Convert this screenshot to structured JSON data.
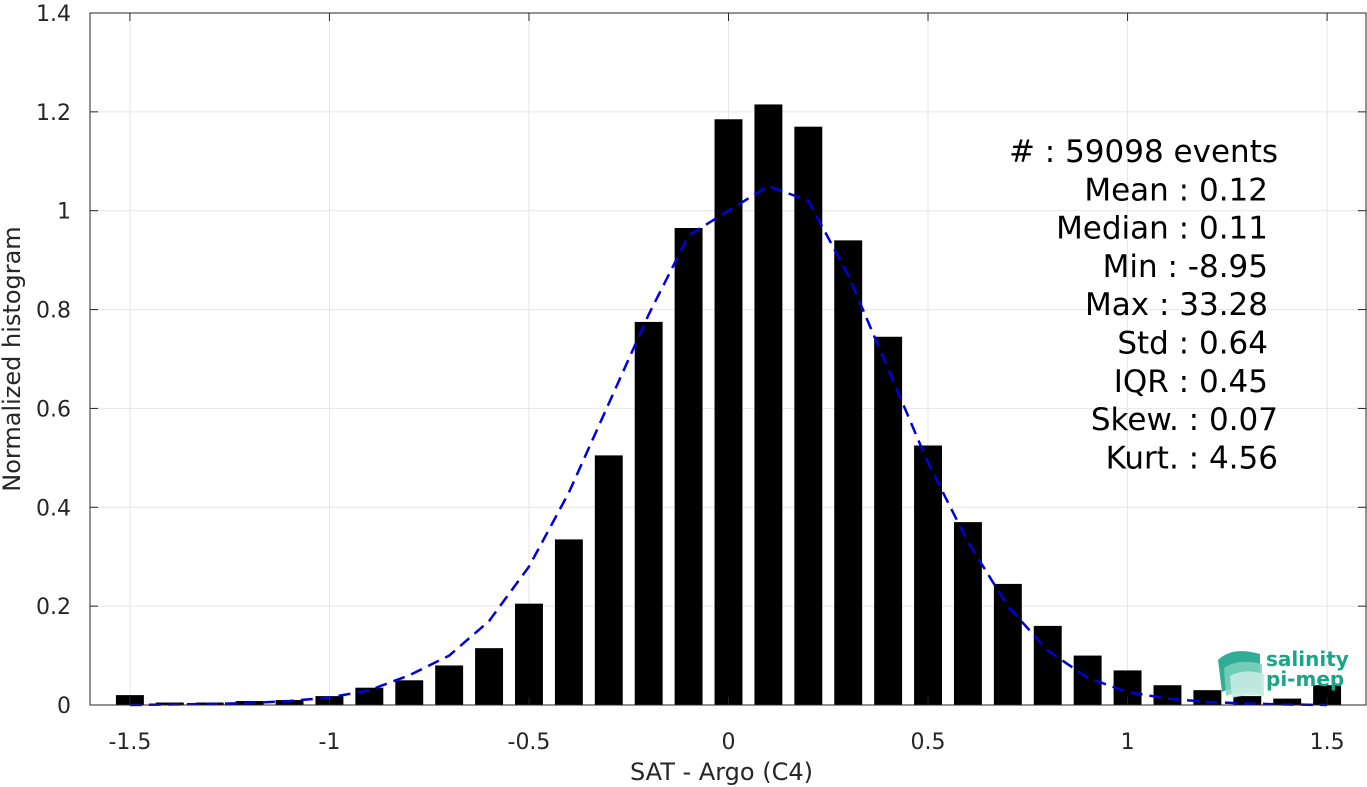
{
  "chart_data": {
    "type": "bar",
    "xlabel": "SAT - Argo (C4)",
    "ylabel": "Normalized histogram",
    "xlim": [
      -1.6,
      1.6
    ],
    "ylim": [
      0,
      1.4
    ],
    "grid": true,
    "xticks": [
      -1.5,
      -1,
      -0.5,
      0,
      0.5,
      1,
      1.5
    ],
    "xtick_labels": [
      "-1.5",
      "-1",
      "-0.5",
      "0",
      "0.5",
      "1",
      "1.5"
    ],
    "yticks": [
      0,
      0.2,
      0.4,
      0.6,
      0.8,
      1,
      1.2,
      1.4
    ],
    "ytick_labels": [
      "0",
      "0.2",
      "0.4",
      "0.6",
      "0.8",
      "1",
      "1.2",
      "1.4"
    ],
    "bar_width": 0.07,
    "bars": {
      "x": [
        -1.5,
        -1.4,
        -1.3,
        -1.2,
        -1.1,
        -1.0,
        -0.9,
        -0.8,
        -0.7,
        -0.6,
        -0.5,
        -0.4,
        -0.3,
        -0.2,
        -0.1,
        0.0,
        0.1,
        0.2,
        0.3,
        0.4,
        0.5,
        0.6,
        0.7,
        0.8,
        0.9,
        1.0,
        1.1,
        1.2,
        1.3,
        1.4,
        1.5
      ],
      "values": [
        0.02,
        0.005,
        0.005,
        0.008,
        0.01,
        0.018,
        0.035,
        0.05,
        0.08,
        0.115,
        0.205,
        0.335,
        0.505,
        0.775,
        0.965,
        1.185,
        1.215,
        1.17,
        0.94,
        0.745,
        0.525,
        0.37,
        0.245,
        0.16,
        0.1,
        0.07,
        0.04,
        0.03,
        0.018,
        0.013,
        0.04
      ],
      "color": "#000000"
    },
    "fit_curve": {
      "style": "dashed",
      "color": "#0000dd",
      "x": [
        -1.5,
        -1.4,
        -1.3,
        -1.2,
        -1.1,
        -1.0,
        -0.9,
        -0.8,
        -0.7,
        -0.6,
        -0.5,
        -0.4,
        -0.3,
        -0.2,
        -0.1,
        0.0,
        0.1,
        0.2,
        0.3,
        0.4,
        0.5,
        0.6,
        0.7,
        0.8,
        0.9,
        1.0,
        1.1,
        1.2,
        1.3,
        1.4,
        1.5
      ],
      "y": [
        0.0,
        0.001,
        0.002,
        0.004,
        0.008,
        0.015,
        0.03,
        0.06,
        0.1,
        0.17,
        0.28,
        0.43,
        0.61,
        0.79,
        0.95,
        1.0,
        1.05,
        1.02,
        0.87,
        0.68,
        0.49,
        0.33,
        0.2,
        0.11,
        0.055,
        0.026,
        0.013,
        0.006,
        0.003,
        0.001,
        0.0
      ]
    },
    "annotations": [
      "#  : 59098 events",
      "Mean : 0.12",
      "Median : 0.11",
      "Min : -8.95",
      "Max : 33.28",
      "Std : 0.64",
      "IQR : 0.45",
      "Skew. : 0.07",
      "Kurt. : 4.56"
    ]
  },
  "logo": {
    "line1": "salinity",
    "line2": "pi-mep",
    "color": "#1aa58a"
  }
}
